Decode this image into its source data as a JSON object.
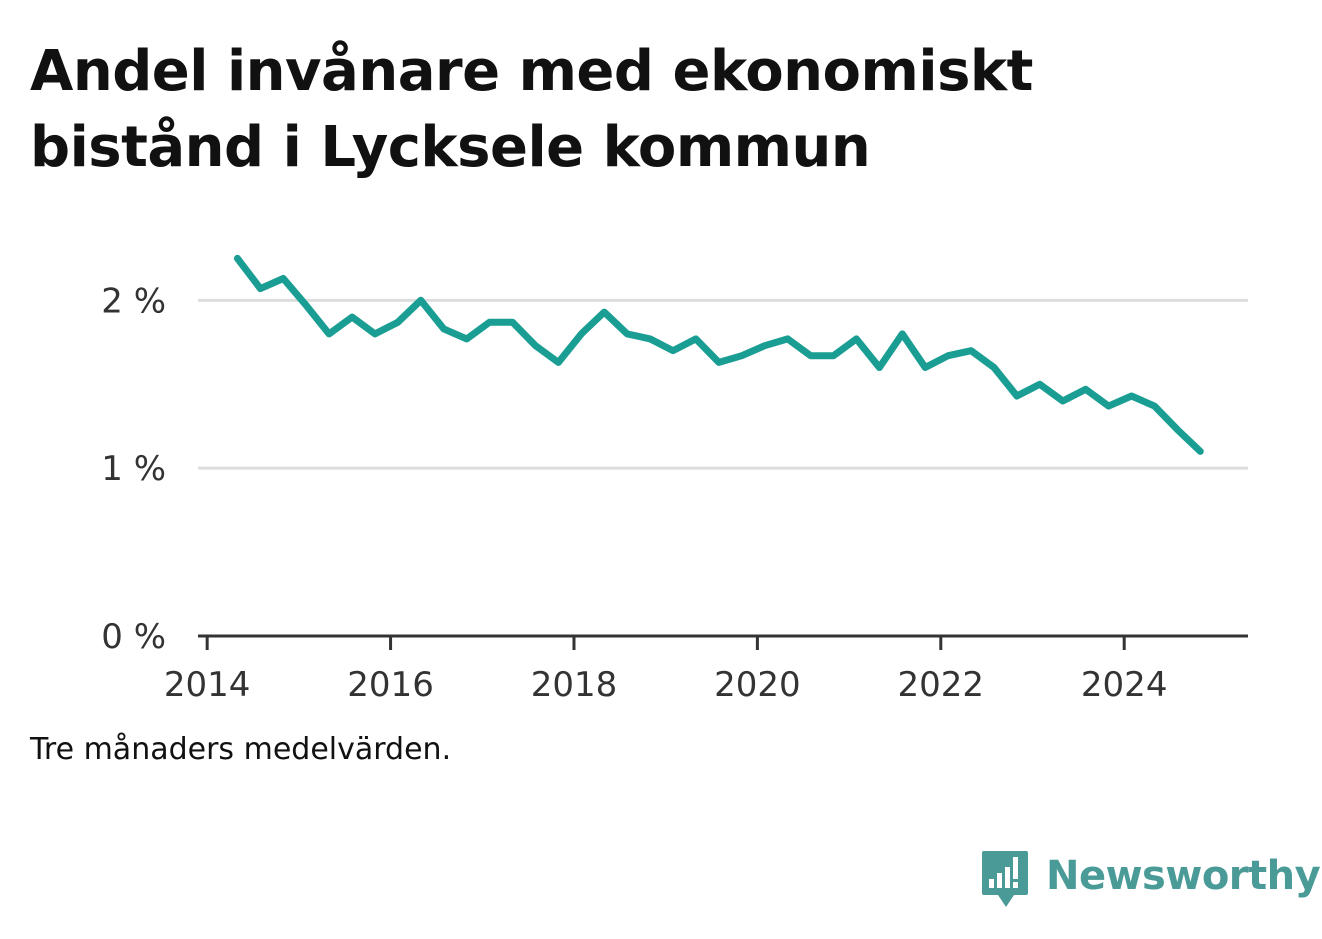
{
  "title": "Andel invånare med ekonomiskt bistånd i Lycksele kommun",
  "note": "Tre månaders medelvärden.",
  "brand": {
    "name": "Newsworthy",
    "icon": "newsworthy-logo-icon",
    "color": "#4a9a97"
  },
  "chart_data": {
    "type": "line",
    "title": "Andel invånare med ekonomiskt bistånd i Lycksele kommun",
    "xlabel": "",
    "ylabel": "",
    "x_ticks": [
      "2014",
      "2016",
      "2018",
      "2020",
      "2022",
      "2024"
    ],
    "x_tick_values": [
      2014,
      2016,
      2018,
      2020,
      2022,
      2024
    ],
    "y_ticks": [
      "0 %",
      "1 %",
      "2 %"
    ],
    "y_tick_values": [
      0,
      1,
      2
    ],
    "xlim": [
      2013.9,
      2025.35
    ],
    "ylim": [
      0,
      2.3
    ],
    "grid": true,
    "line_color": "#1a9e94",
    "series": [
      {
        "x": [
          2014.33,
          2014.58,
          2014.83,
          2015.08,
          2015.33,
          2015.58,
          2015.83,
          2016.08,
          2016.33,
          2016.58,
          2016.83,
          2017.08,
          2017.33,
          2017.58,
          2017.83,
          2018.08,
          2018.33,
          2018.58,
          2018.83,
          2019.08,
          2019.33,
          2019.58,
          2019.83,
          2020.08,
          2020.33,
          2020.58,
          2020.83,
          2021.08,
          2021.33,
          2021.58,
          2021.83,
          2022.08,
          2022.33,
          2022.58,
          2022.83,
          2023.08,
          2023.33,
          2023.58,
          2023.83,
          2024.08,
          2024.33,
          2024.58,
          2024.83
        ],
        "values": [
          2.25,
          2.07,
          2.13,
          1.97,
          1.8,
          1.9,
          1.8,
          1.87,
          2.0,
          1.83,
          1.77,
          1.87,
          1.87,
          1.73,
          1.63,
          1.8,
          1.93,
          1.8,
          1.77,
          1.7,
          1.77,
          1.63,
          1.67,
          1.73,
          1.77,
          1.67,
          1.67,
          1.77,
          1.6,
          1.8,
          1.6,
          1.67,
          1.7,
          1.6,
          1.43,
          1.5,
          1.4,
          1.47,
          1.37,
          1.43,
          1.37,
          1.23,
          1.1
        ]
      }
    ]
  }
}
